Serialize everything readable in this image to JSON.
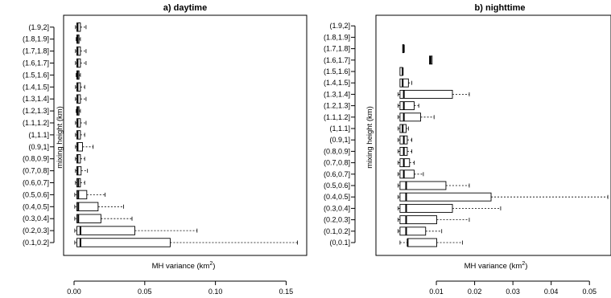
{
  "chart_data": [
    {
      "type": "boxplot",
      "orientation": "horizontal",
      "title": "a) daytime",
      "xlabel": "MH variance (km",
      "xlabel_sup": "2",
      "xlabel_end": ")",
      "ylabel": "mixing height (km)",
      "xlim": [
        0,
        0.16
      ],
      "xticks": [
        "0.00",
        "0.05",
        "0.10",
        "0.15"
      ],
      "xtick_values": [
        0,
        0.05,
        0.1,
        0.15
      ],
      "categories": [
        "(0.1,0.2]",
        "(0.2,0.3]",
        "(0.3,0.4]",
        "(0.4,0.5]",
        "(0.5,0.6]",
        "(0.6,0.7]",
        "(0.7,0.8]",
        "(0.8,0.9]",
        "(0.9,1]",
        "(1,1.1]",
        "(1.1,1.2]",
        "(1.2,1.3]",
        "(1.3,1.4]",
        "(1.4,1.5]",
        "(1.5,1.6]",
        "(1.6,1.7]",
        "(1.7,1.8]",
        "(1.8,1.9]",
        "(1.9,2]"
      ],
      "boxes": [
        {
          "min": 0.0005,
          "q1": 0.002,
          "median": 0.0045,
          "q3": 0.068,
          "max": 0.158
        },
        {
          "min": 0.0005,
          "q1": 0.002,
          "median": 0.0045,
          "q3": 0.043,
          "max": 0.087
        },
        {
          "min": 0.0005,
          "q1": 0.002,
          "median": 0.003,
          "q3": 0.019,
          "max": 0.041
        },
        {
          "min": 0.0005,
          "q1": 0.002,
          "median": 0.003,
          "q3": 0.017,
          "max": 0.035
        },
        {
          "min": 0.0005,
          "q1": 0.002,
          "median": 0.003,
          "q3": 0.009,
          "max": 0.022
        },
        {
          "min": 0.001,
          "q1": 0.002,
          "median": 0.003,
          "q3": 0.0045,
          "max": 0.0075
        },
        {
          "min": 0.001,
          "q1": 0.002,
          "median": 0.0025,
          "q3": 0.005,
          "max": 0.0095
        },
        {
          "min": 0.001,
          "q1": 0.002,
          "median": 0.0025,
          "q3": 0.0045,
          "max": 0.0075
        },
        {
          "min": 0.001,
          "q1": 0.002,
          "median": 0.0025,
          "q3": 0.006,
          "max": 0.0135
        },
        {
          "min": 0.001,
          "q1": 0.002,
          "median": 0.0025,
          "q3": 0.0045,
          "max": 0.0075
        },
        {
          "min": 0.001,
          "q1": 0.002,
          "median": 0.0025,
          "q3": 0.0045,
          "max": 0.0085
        },
        {
          "min": 0.0015,
          "q1": 0.002,
          "median": 0.0025,
          "q3": 0.0035,
          "max": 0.0045
        },
        {
          "min": 0.001,
          "q1": 0.002,
          "median": 0.0025,
          "q3": 0.0045,
          "max": 0.0085
        },
        {
          "min": 0.001,
          "q1": 0.002,
          "median": 0.0025,
          "q3": 0.0045,
          "max": 0.0075
        },
        {
          "min": 0.0015,
          "q1": 0.002,
          "median": 0.0025,
          "q3": 0.0035,
          "max": 0.0045
        },
        {
          "min": 0.001,
          "q1": 0.002,
          "median": 0.0025,
          "q3": 0.0045,
          "max": 0.0085
        },
        {
          "min": 0.001,
          "q1": 0.002,
          "median": 0.0025,
          "q3": 0.0045,
          "max": 0.0085
        },
        {
          "min": 0.0015,
          "q1": 0.002,
          "median": 0.0025,
          "q3": 0.0035,
          "max": 0.0045
        },
        {
          "min": 0.001,
          "q1": 0.002,
          "median": 0.0025,
          "q3": 0.0045,
          "max": 0.0085
        }
      ]
    },
    {
      "type": "boxplot",
      "orientation": "horizontal",
      "title": "b) nighttime",
      "xlabel": "MH variance (km",
      "xlabel_sup": "2",
      "xlabel_end": ")",
      "ylabel": "mixing height (km)",
      "xlim": [
        -0.002,
        0.055
      ],
      "xticks": [
        "0.01",
        "0.02",
        "0.03",
        "0.04",
        "0.05"
      ],
      "xtick_values": [
        0.01,
        0.02,
        0.03,
        0.04,
        0.05
      ],
      "categories": [
        "(0,0.1]",
        "(0.1,0.2]",
        "(0.2,0.3]",
        "(0.3,0.4]",
        "(0.4,0.5]",
        "(0.5,0.6]",
        "(0.6,0.7]",
        "(0.7,0.8]",
        "(0.8,0.9]",
        "(0.9,1]",
        "(1,1.1]",
        "(1.1,1.2]",
        "(1.2,1.3]",
        "(1.3,1.4]",
        "(1.4,1.5]",
        "(1.5,1.6]",
        "(1.6,1.7]",
        "(1.7,1.8]",
        "(1.8,1.9]",
        "(1.9,2]"
      ],
      "boxes": [
        {
          "min": 0.0005,
          "q1": 0.0025,
          "median": 0.0025,
          "q3": 0.0101,
          "max": 0.0168
        },
        {
          "min": 0.0,
          "q1": 0.0005,
          "median": 0.0021,
          "q3": 0.0072,
          "max": 0.0114
        },
        {
          "min": 0.0,
          "q1": 0.0005,
          "median": 0.0021,
          "q3": 0.0101,
          "max": 0.0186
        },
        {
          "min": 0.0,
          "q1": 0.0005,
          "median": 0.0021,
          "q3": 0.0142,
          "max": 0.0268
        },
        {
          "min": 0.0,
          "q1": 0.0005,
          "median": 0.0021,
          "q3": 0.0243,
          "max": 0.0548
        },
        {
          "min": 0.0,
          "q1": 0.0005,
          "median": 0.0021,
          "q3": 0.0125,
          "max": 0.0186
        },
        {
          "min": 0.0,
          "q1": 0.0005,
          "median": 0.0015,
          "q3": 0.0042,
          "max": 0.0066
        },
        {
          "min": 0.0,
          "q1": 0.0005,
          "median": 0.0015,
          "q3": 0.003,
          "max": 0.0042
        },
        {
          "min": 0.0,
          "q1": 0.0005,
          "median": 0.0015,
          "q3": 0.0024,
          "max": 0.0036
        },
        {
          "min": 0.0,
          "q1": 0.0005,
          "median": 0.0015,
          "q3": 0.0024,
          "max": 0.0036
        },
        {
          "min": 0.0,
          "q1": 0.0005,
          "median": 0.0012,
          "q3": 0.0021,
          "max": 0.0027
        },
        {
          "min": 0.0,
          "q1": 0.0005,
          "median": 0.0015,
          "q3": 0.0059,
          "max": 0.0094
        },
        {
          "min": 0.0,
          "q1": 0.0005,
          "median": 0.0015,
          "q3": 0.0042,
          "max": 0.0054
        },
        {
          "min": 0.0,
          "q1": 0.0005,
          "median": 0.0015,
          "q3": 0.0142,
          "max": 0.0186
        },
        {
          "min": 0.0005,
          "q1": 0.0005,
          "median": 0.0012,
          "q3": 0.0027,
          "max": 0.0036
        },
        {
          "min": 0.0005,
          "q1": 0.0005,
          "median": 0.0012,
          "q3": 0.0012,
          "max": 0.0012
        },
        {
          "min": 0.0082,
          "q1": 0.0082,
          "median": 0.0085,
          "q3": 0.0089,
          "max": 0.0089
        },
        {
          "min": 0.0012,
          "q1": 0.0012,
          "median": 0.0015,
          "q3": 0.0015,
          "max": 0.0015
        },
        {
          "min": null,
          "q1": null,
          "median": null,
          "q3": null,
          "max": null
        },
        {
          "min": null,
          "q1": null,
          "median": null,
          "q3": null,
          "max": null
        }
      ]
    }
  ]
}
